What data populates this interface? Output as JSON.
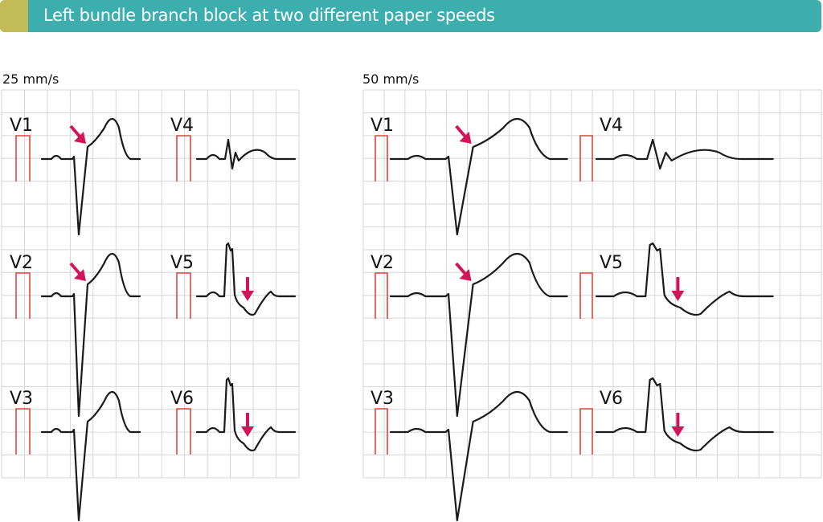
{
  "header": {
    "title": "Left bundle branch block at two different paper speeds"
  },
  "colors": {
    "banner": "#3caeae",
    "banner_tab": "#c2bb58",
    "arrow": "#d4145a",
    "calibration": "#e8403c",
    "grid": "#d6d6d6",
    "trace": "#1a1a1a"
  },
  "panels": [
    {
      "speed": "25 mm/s",
      "leads": [
        "V1",
        "V2",
        "V3",
        "V4",
        "V5",
        "V6"
      ]
    },
    {
      "speed": "50 mm/s",
      "leads": [
        "V1",
        "V2",
        "V3",
        "V4",
        "V5",
        "V6"
      ]
    }
  ],
  "annotations": {
    "arrow_icons": [
      "diagonal-arrow-V1",
      "diagonal-arrow-V2",
      "down-arrow-V5",
      "down-arrow-V6"
    ]
  }
}
